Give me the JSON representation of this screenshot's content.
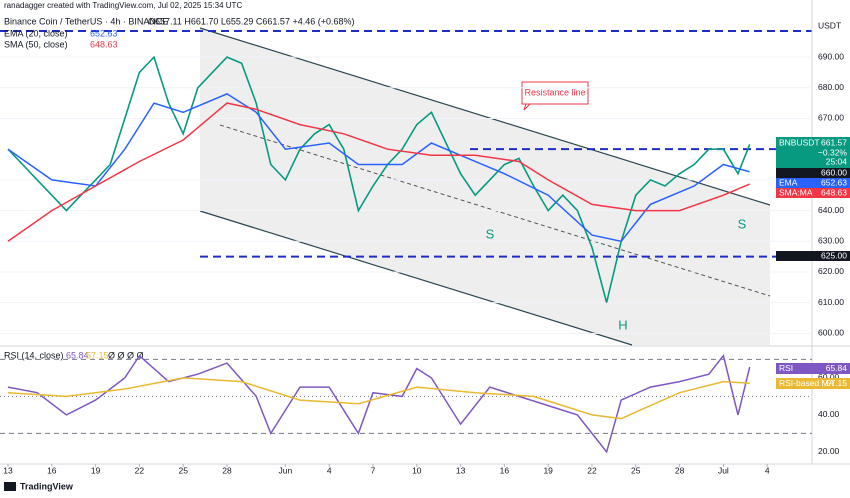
{
  "header": {
    "credit": "ranadagger created with TradingView.com, Jul 02, 2025 15:34 UTC",
    "brand": "TradingView"
  },
  "chart_data": [
    {
      "type": "line",
      "title": "Binance Coin / TetherUS · 4h · BINANCE",
      "ohlc_text": "O657.11 H661.70 L655.29 C661.57 +4.46 (+0.68%)",
      "currency": "USDT",
      "xlim": [
        -0.55,
        55.07
      ],
      "xticks": [
        {
          "value": 0,
          "label": "13"
        },
        {
          "value": 3,
          "label": "16"
        },
        {
          "value": 6,
          "label": "19"
        },
        {
          "value": 9,
          "label": "22"
        },
        {
          "value": 12,
          "label": "25"
        },
        {
          "value": 15,
          "label": "28"
        },
        {
          "value": 19,
          "label": "Jun"
        },
        {
          "value": 22,
          "label": "4"
        },
        {
          "value": 25,
          "label": "7"
        },
        {
          "value": 28,
          "label": "10"
        },
        {
          "value": 31,
          "label": "13"
        },
        {
          "value": 34,
          "label": "16"
        },
        {
          "value": 37,
          "label": "19"
        },
        {
          "value": 40,
          "label": "22"
        },
        {
          "value": 43,
          "label": "25"
        },
        {
          "value": 46,
          "label": "28"
        },
        {
          "value": 49,
          "label": "Jul"
        },
        {
          "value": 52,
          "label": "4"
        }
      ],
      "ylim": [
        596.2,
        708.6
      ],
      "yticks": [
        {
          "value": 600,
          "label": "600.00"
        },
        {
          "value": 610,
          "label": "610.00"
        },
        {
          "value": 620,
          "label": "620.00"
        },
        {
          "value": 630,
          "label": "630.00"
        },
        {
          "value": 640,
          "label": "640.00"
        },
        {
          "value": 650,
          "label": "650.00"
        },
        {
          "value": 670,
          "label": "670.00"
        },
        {
          "value": 680,
          "label": "680.00"
        },
        {
          "value": 690,
          "label": "690.00"
        }
      ],
      "grid": true,
      "levels": [
        {
          "value": 660,
          "label": "660.00"
        },
        {
          "value": 625,
          "label": "625.00"
        }
      ],
      "annotations": [
        "Resistance line",
        "S",
        "H",
        "S"
      ],
      "series": [
        {
          "name": "BNBUSDT",
          "color": "#089981",
          "change": "−0.32%",
          "countdown": "25:04",
          "x": [
            0,
            1,
            2,
            3,
            4,
            5,
            6,
            7,
            8,
            9,
            10,
            11,
            12,
            13,
            14,
            15,
            16,
            17,
            18,
            19,
            20,
            21,
            22,
            23,
            24,
            25,
            26,
            27,
            28,
            29,
            30,
            31,
            32,
            33,
            34,
            35,
            36,
            37,
            38,
            39,
            40,
            41,
            42,
            43,
            44,
            45,
            46,
            47,
            48,
            49,
            50,
            50.8
          ],
          "values": [
            660,
            655,
            650,
            645,
            640,
            645,
            650,
            655,
            670,
            685,
            690,
            675,
            665,
            680,
            685,
            690,
            688,
            675,
            655,
            650,
            660,
            665,
            668,
            660,
            640,
            648,
            655,
            660,
            668,
            672,
            662,
            652,
            645,
            650,
            655,
            657,
            648,
            640,
            645,
            640,
            628,
            610,
            630,
            645,
            650,
            648,
            652,
            655,
            660,
            660,
            652,
            661.57
          ]
        },
        {
          "name": "EMA (20, close)",
          "badge": "EMA",
          "color": "#2962ff",
          "x": [
            0,
            3,
            6,
            8,
            10,
            12,
            15,
            17,
            19,
            22,
            24,
            27,
            29,
            31,
            34,
            37,
            40,
            42,
            44,
            47,
            49,
            50.8
          ],
          "values": [
            660,
            650,
            648,
            660,
            675,
            672,
            678,
            672,
            660,
            662,
            655,
            655,
            662,
            658,
            652,
            645,
            632,
            630,
            642,
            648,
            655,
            652.63
          ]
        },
        {
          "name": "SMA (50, close)",
          "badge": "SMA:MA",
          "color": "#f23645",
          "x": [
            0,
            3,
            6,
            9,
            12,
            15,
            17,
            20,
            23,
            26,
            29,
            32,
            35,
            37,
            40,
            43,
            46,
            49,
            50.8
          ],
          "values": [
            630,
            640,
            648,
            656,
            663,
            675,
            673,
            668,
            665,
            660,
            658,
            658,
            656,
            650,
            642,
            640,
            640,
            645,
            648.63
          ]
        }
      ]
    },
    {
      "type": "line",
      "title": "RSI (14, close)",
      "extra": "Ø Ø Ø Ø",
      "xlim": [
        -0.55,
        55.07
      ],
      "ylim": [
        14,
        74
      ],
      "yticks": [
        {
          "value": 60,
          "label": "60.00"
        },
        {
          "value": 40,
          "label": "40.00"
        },
        {
          "value": 20,
          "label": "20.00"
        }
      ],
      "bands": [
        70,
        50,
        30
      ],
      "series": [
        {
          "name": "RSI",
          "color": "#7e57c2",
          "x": [
            0,
            2,
            4,
            6,
            8,
            9,
            11,
            13,
            15,
            17,
            18,
            20,
            22,
            24,
            25,
            27,
            28,
            29,
            31,
            33,
            35,
            37,
            39,
            40,
            41,
            42,
            44,
            46,
            48,
            49,
            50,
            50.8
          ],
          "values": [
            55,
            52,
            40,
            48,
            60,
            72,
            58,
            62,
            68,
            50,
            30,
            55,
            55,
            30,
            52,
            50,
            65,
            60,
            35,
            55,
            50,
            45,
            40,
            30,
            20,
            48,
            55,
            58,
            62,
            72,
            40,
            65.84
          ]
        },
        {
          "name": "RSI-based MA",
          "color": "#e8b931",
          "x": [
            0,
            4,
            8,
            12,
            16,
            20,
            24,
            28,
            32,
            36,
            40,
            42,
            46,
            49,
            50.8
          ],
          "values": [
            52,
            50,
            54,
            60,
            58,
            48,
            46,
            55,
            52,
            50,
            40,
            38,
            52,
            58,
            57.15
          ]
        }
      ]
    }
  ]
}
